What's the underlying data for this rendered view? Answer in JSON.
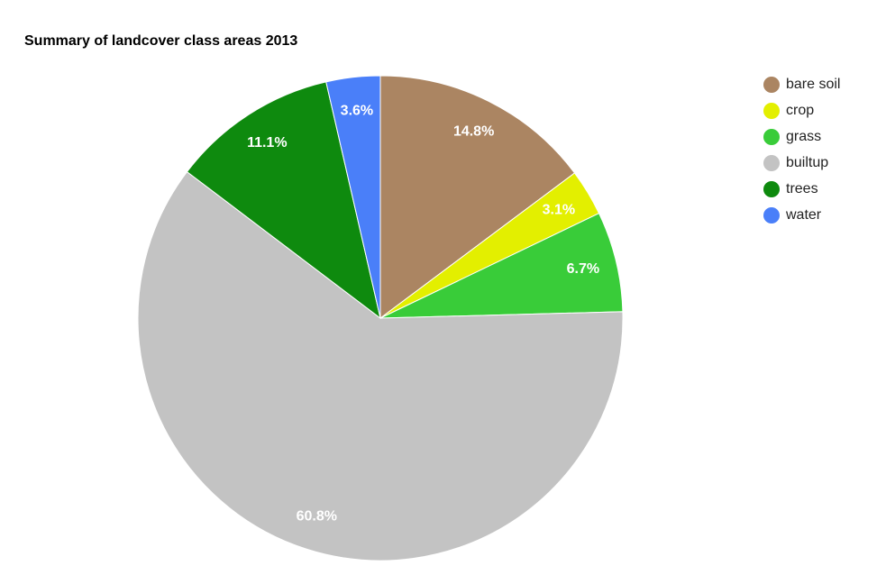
{
  "chart_data": {
    "type": "pie",
    "title": "Summary of landcover class areas 2013",
    "categories": [
      "bare soil",
      "crop",
      "grass",
      "builtup",
      "trees",
      "water"
    ],
    "values": [
      14.8,
      3.1,
      6.7,
      60.8,
      11.1,
      3.6
    ],
    "value_labels": [
      "14.8%",
      "3.1%",
      "6.7%",
      "60.8%",
      "11.1%",
      "3.6%"
    ],
    "colors": [
      "#ab8562",
      "#e3ef00",
      "#39cc39",
      "#c3c3c3",
      "#0e8a0e",
      "#4a7ff9"
    ],
    "legend": "right"
  }
}
